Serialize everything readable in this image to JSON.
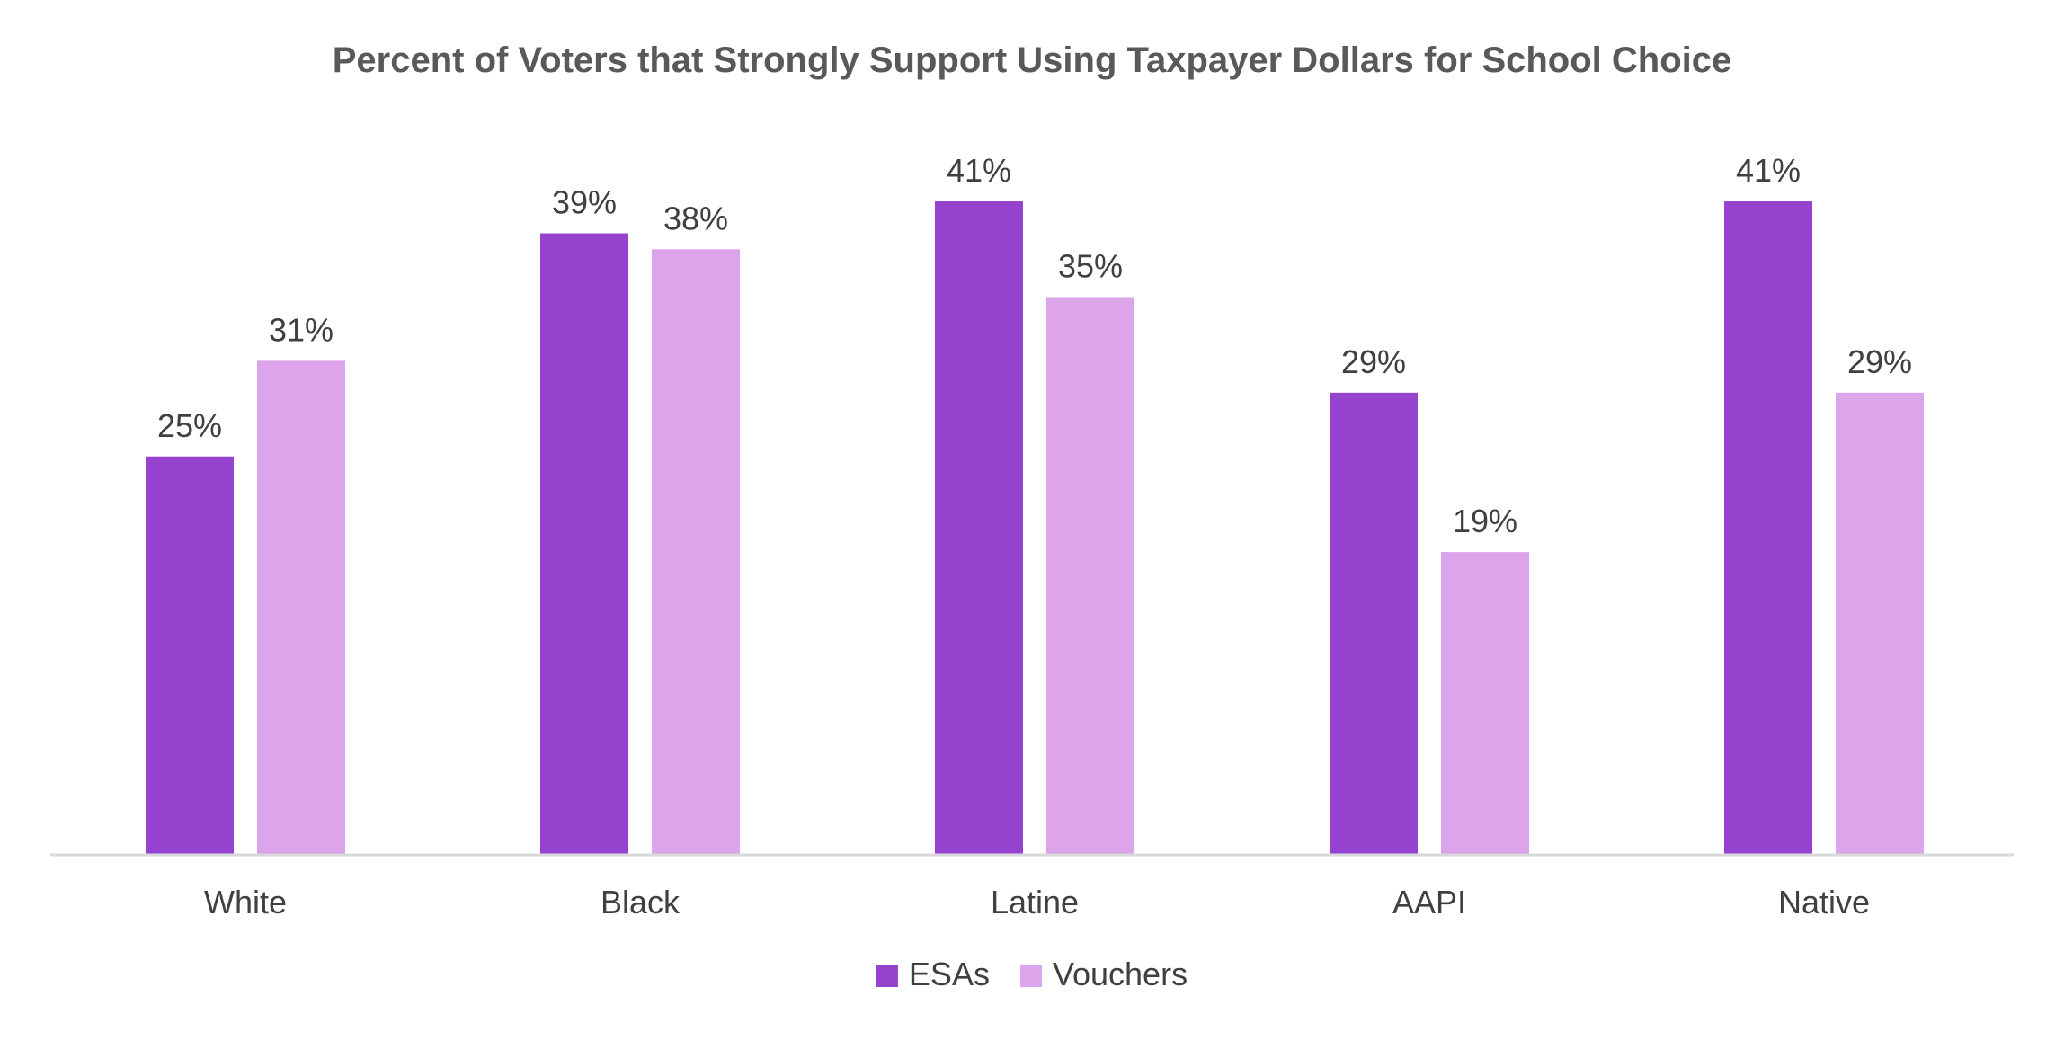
{
  "chart_data": {
    "type": "bar",
    "title": "Percent of Voters that Strongly Support Using Taxpayer Dollars for School Choice",
    "xlabel": "",
    "ylabel": "",
    "categories": [
      "White",
      "Black",
      "Latine",
      "AAPI",
      "Native"
    ],
    "series": [
      {
        "name": "ESAs",
        "values": [
          25,
          39,
          41,
          29,
          41
        ],
        "labels": [
          "25%",
          "39%",
          "41%",
          "29%",
          "41%"
        ],
        "color": "#9543CE"
      },
      {
        "name": "Vouchers",
        "values": [
          31,
          38,
          35,
          19,
          29
        ],
        "labels": [
          "31%",
          "38%",
          "35%",
          "19%",
          "29%"
        ],
        "color": "#DCA4EA"
      }
    ],
    "ylim": [
      0,
      45
    ],
    "grid": false,
    "legend_position": "bottom"
  }
}
